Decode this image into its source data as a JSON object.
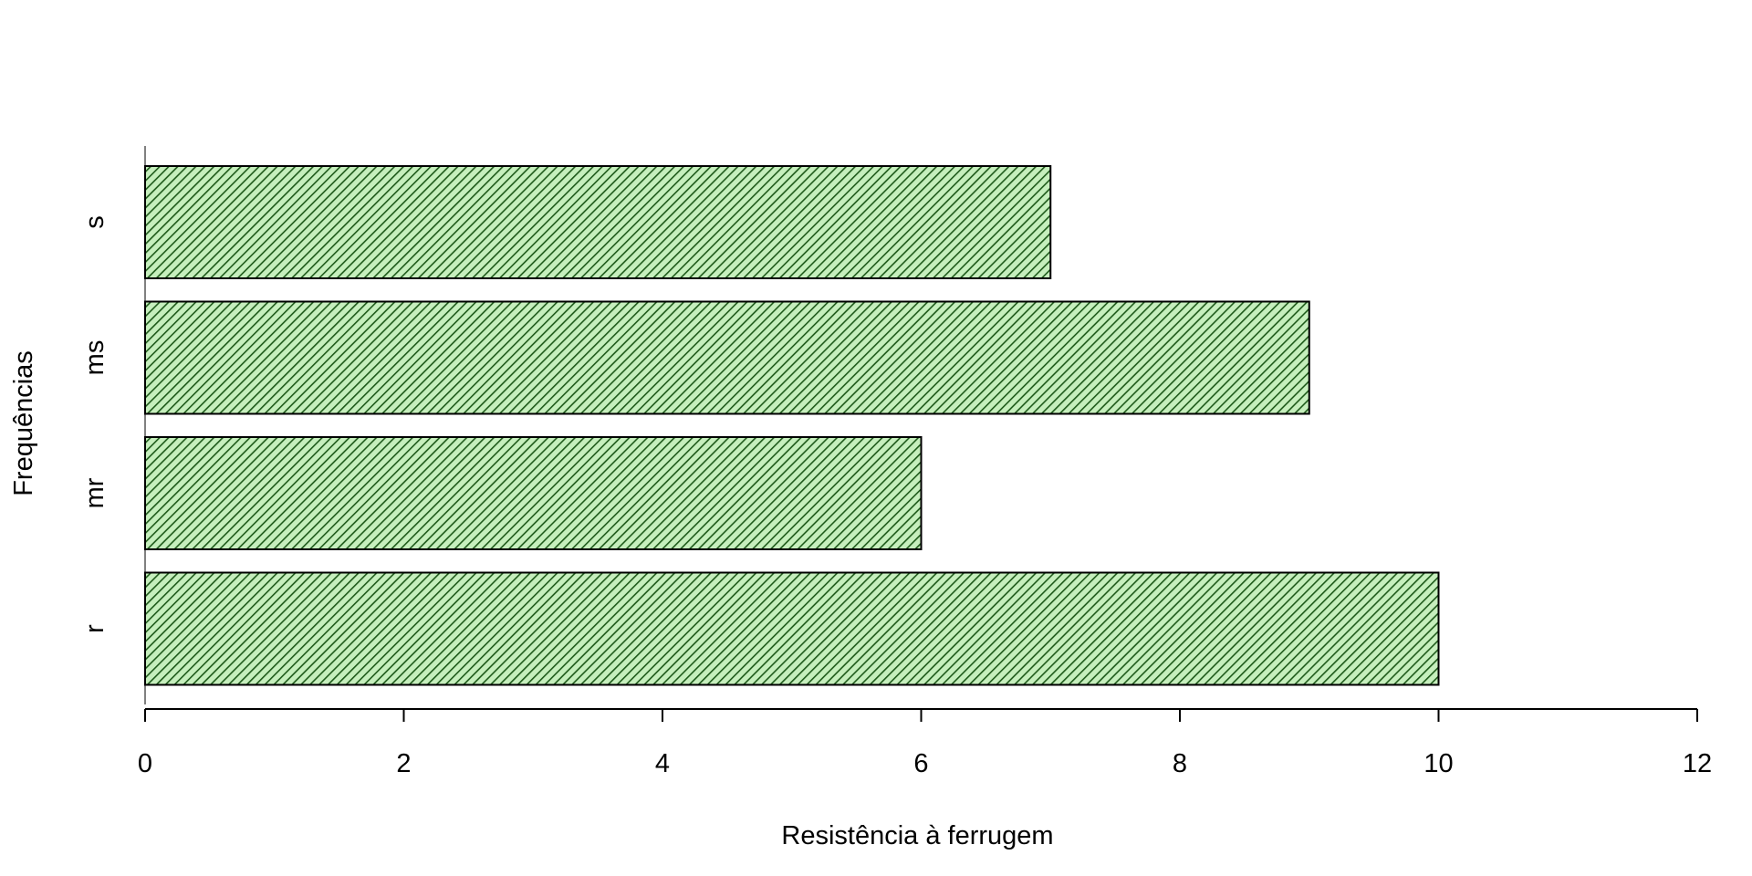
{
  "chart_data": {
    "type": "bar",
    "orientation": "horizontal",
    "categories": [
      "r",
      "mr",
      "ms",
      "s"
    ],
    "values": [
      10,
      6,
      9,
      7
    ],
    "title": "",
    "xlabel": "Resistência à ferrugem",
    "ylabel": "Frequências",
    "xlim": [
      0,
      12
    ],
    "xticks": [
      0,
      2,
      4,
      6,
      8,
      10,
      12
    ],
    "grid": false,
    "legend": "none",
    "fill": "hatched",
    "colors": {
      "bar_fill": "#c6efbd",
      "bar_hatch": "#1e5a1a",
      "bar_border": "#000000",
      "axis": "#000000"
    }
  }
}
